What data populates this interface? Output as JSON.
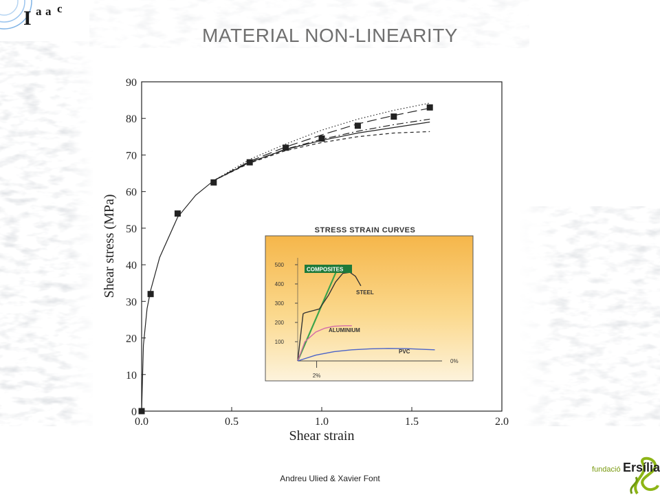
{
  "slide": {
    "title": "MATERIAL NON-LINEARITY",
    "footer": "Andreu Ulied &  Xavier Font",
    "logo_top_text": "I",
    "logo_top_sup1": "a",
    "logo_top_sup2": "a",
    "logo_top_sup3": "c",
    "logo_bottom_small": "fundació",
    "logo_bottom_big": "Ersília"
  },
  "chart_data": [
    {
      "type": "scatter",
      "xlabel": "Shear strain",
      "ylabel": "Shear stress (MPa)",
      "xlim": [
        0,
        2.0
      ],
      "ylim": [
        0,
        90
      ],
      "xticks": [
        "0.0",
        "0.5",
        "1.0",
        "1.5",
        "2.0"
      ],
      "yticks": [
        "0",
        "10",
        "20",
        "30",
        "40",
        "50",
        "60",
        "70",
        "80",
        "90"
      ],
      "grid": false,
      "points": {
        "x": [
          0.0,
          0.05,
          0.2,
          0.4,
          0.6,
          0.8,
          1.0,
          1.2,
          1.4,
          1.6
        ],
        "y": [
          0,
          32,
          54,
          62.5,
          68,
          72,
          74.5,
          78,
          80.5,
          83
        ]
      },
      "fit_curves": [
        {
          "style": "solid",
          "x": [
            0.0,
            0.01,
            0.03,
            0.05,
            0.1,
            0.2,
            0.3,
            0.4,
            0.6,
            0.8,
            1.0,
            1.2,
            1.4,
            1.6
          ],
          "y": [
            0,
            18,
            28,
            33,
            42,
            53,
            59,
            63,
            68,
            71.5,
            74,
            76,
            77.5,
            79
          ]
        },
        {
          "style": "dotted",
          "x": [
            0.4,
            0.6,
            0.8,
            1.0,
            1.2,
            1.4,
            1.6
          ],
          "y": [
            63,
            68.8,
            73,
            76.8,
            79.8,
            82.2,
            84.2
          ]
        },
        {
          "style": "dashed-long",
          "x": [
            0.4,
            0.6,
            0.8,
            1.0,
            1.2,
            1.4,
            1.6
          ],
          "y": [
            63,
            68.3,
            72.2,
            75.5,
            78.5,
            80.8,
            82.8
          ]
        },
        {
          "style": "dash-dot",
          "x": [
            0.4,
            0.6,
            0.8,
            1.0,
            1.2,
            1.4,
            1.6
          ],
          "y": [
            63,
            68,
            71.6,
            74.3,
            76.5,
            78.3,
            79.8
          ]
        },
        {
          "style": "dashed",
          "x": [
            0.4,
            0.6,
            0.8,
            1.0,
            1.2,
            1.4,
            1.6
          ],
          "y": [
            63,
            67.8,
            71.2,
            73.4,
            75,
            76,
            76.4
          ]
        }
      ]
    },
    {
      "type": "line",
      "title": "STRESS STRAIN CURVES",
      "yticks": [
        "500",
        "400",
        "300",
        "200",
        "100"
      ],
      "ytick_values": [
        500,
        400,
        300,
        200,
        100
      ],
      "x_markers": [
        "2%",
        "0%"
      ],
      "series": [
        {
          "name": "COMPOSITES",
          "color": "#3aa34a",
          "x": [
            0,
            2.3
          ],
          "y": [
            0,
            500
          ]
        },
        {
          "name": "STEEL",
          "color": "#333333",
          "x": [
            0,
            0.3,
            0.4,
            1.2,
            1.7,
            2.1,
            2.5,
            2.9,
            3.2,
            3.5
          ],
          "y": [
            0,
            245,
            250,
            270,
            340,
            410,
            455,
            460,
            440,
            390
          ]
        },
        {
          "name": "ALUMINIUM",
          "color": "#d36aa7",
          "x": [
            0,
            0.4,
            1.0,
            1.5,
            2.0,
            2.6,
            3.0
          ],
          "y": [
            0,
            100,
            150,
            170,
            180,
            183,
            183
          ]
        },
        {
          "name": "PVC",
          "color": "#4a63c8",
          "x": [
            0,
            1,
            2,
            3,
            4,
            5,
            6,
            7,
            7.6
          ],
          "y": [
            0,
            30,
            48,
            58,
            63,
            65,
            64,
            60,
            58
          ]
        }
      ]
    }
  ]
}
